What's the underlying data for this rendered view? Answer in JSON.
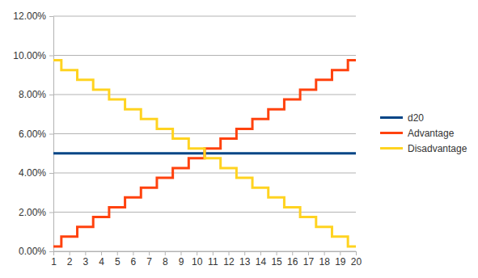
{
  "chart_data": {
    "type": "line",
    "line_style": "step",
    "grid": true,
    "legend": "right",
    "x": [
      1,
      2,
      3,
      4,
      5,
      6,
      7,
      8,
      9,
      10,
      11,
      12,
      13,
      14,
      15,
      16,
      17,
      18,
      19,
      20
    ],
    "xlim": [
      1,
      20
    ],
    "xticks": [
      1,
      2,
      3,
      4,
      5,
      6,
      7,
      8,
      9,
      10,
      11,
      12,
      13,
      14,
      15,
      16,
      17,
      18,
      19,
      20
    ],
    "ylim": [
      0,
      12
    ],
    "yticks": [
      {
        "value": 0,
        "label": "0.00%"
      },
      {
        "value": 2,
        "label": "2.00%"
      },
      {
        "value": 4,
        "label": "4.00%"
      },
      {
        "value": 6,
        "label": "6.00%"
      },
      {
        "value": 8,
        "label": "8.00%"
      },
      {
        "value": 10,
        "label": "10.00%"
      },
      {
        "value": 12,
        "label": "12.00%"
      }
    ],
    "series": [
      {
        "name": "d20",
        "color": "#004586",
        "values": [
          5,
          5,
          5,
          5,
          5,
          5,
          5,
          5,
          5,
          5,
          5,
          5,
          5,
          5,
          5,
          5,
          5,
          5,
          5,
          5
        ]
      },
      {
        "name": "Advantage",
        "color": "#ff420e",
        "values": [
          0.25,
          0.75,
          1.25,
          1.75,
          2.25,
          2.75,
          3.25,
          3.75,
          4.25,
          4.75,
          5.25,
          5.75,
          6.25,
          6.75,
          7.25,
          7.75,
          8.25,
          8.75,
          9.25,
          9.75
        ]
      },
      {
        "name": "Disadvantage",
        "color": "#ffd320",
        "values": [
          9.75,
          9.25,
          8.75,
          8.25,
          7.75,
          7.25,
          6.75,
          6.25,
          5.75,
          5.25,
          4.75,
          4.25,
          3.75,
          3.25,
          2.75,
          2.25,
          1.75,
          1.25,
          0.75,
          0.25
        ]
      }
    ]
  }
}
